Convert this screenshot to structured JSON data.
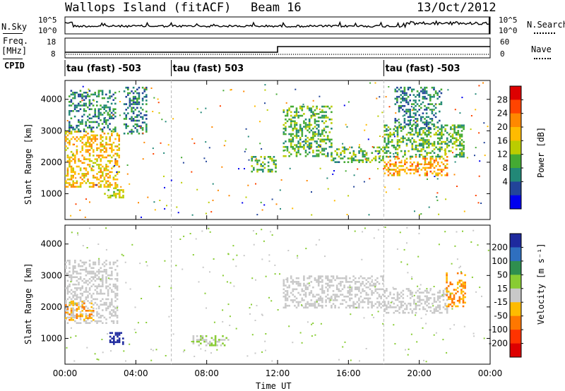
{
  "header": {
    "station": "Wallops Island (fitACF)",
    "beam": "Beam 16",
    "date": "13/Oct/2012"
  },
  "noise_panel": {
    "left_label": "N.Sky",
    "right_label": "N.Search",
    "left_ticks": [
      "10^5",
      "10^0"
    ],
    "right_ticks": [
      "10^5",
      "10^0"
    ]
  },
  "freq_panel": {
    "left_label_1": "Freq.",
    "left_label_2": "[MHz]",
    "left_ticks": [
      "18",
      "8"
    ],
    "right_label": "Nave",
    "right_ticks": [
      "60",
      "0"
    ]
  },
  "cpid": {
    "label": "CPID",
    "segments": [
      {
        "start_hour": 0,
        "text": "tau (fast) -503"
      },
      {
        "start_hour": 6,
        "text": "tau (fast) 503"
      },
      {
        "start_hour": 18,
        "text": "tau (fast) -503"
      }
    ]
  },
  "power_scale": {
    "label": "Power [dB]",
    "ticks": [
      "28",
      "24",
      "20",
      "16",
      "12",
      "8",
      "4"
    ],
    "colors": [
      "#dd0000",
      "#ff4400",
      "#ff8800",
      "#ffbb00",
      "#bbcc00",
      "#44aa33",
      "#228877",
      "#224499",
      "#0000ee"
    ]
  },
  "velocity_scale": {
    "label": "Velocity [m s⁻¹]",
    "ticks": [
      "200",
      "100",
      "50",
      "15",
      "-15",
      "-50",
      "-100",
      "-200"
    ],
    "colors": [
      "#1e2a9e",
      "#2f6fbf",
      "#2f8f4f",
      "#88cc33",
      "#c8c8c8",
      "#ffbb00",
      "#ff7700",
      "#ff3300",
      "#dd0000"
    ]
  },
  "chart_data": {
    "type": "heatmap",
    "xlabel": "Time UT",
    "x_ticks": [
      "00:00",
      "04:00",
      "08:00",
      "12:00",
      "16:00",
      "20:00",
      "00:00"
    ],
    "x_range_hours": [
      0,
      24
    ],
    "ylabel": "Slant Range [km]",
    "y_ticks": [
      1000,
      2000,
      3000,
      4000
    ],
    "y_range_km": [
      180,
      4600
    ],
    "freq_steps_mhz": [
      {
        "from_hour": 0,
        "to_hour": 12,
        "value": 10
      },
      {
        "from_hour": 12,
        "to_hour": 24,
        "value": 14
      }
    ],
    "power_regions": [
      {
        "t": [
          0.0,
          3.1
        ],
        "range_km": [
          1200,
          3000
        ],
        "level": 20
      },
      {
        "t": [
          0.2,
          2.8
        ],
        "range_km": [
          3000,
          4300
        ],
        "level": 8
      },
      {
        "t": [
          2.2,
          3.3
        ],
        "range_km": [
          900,
          1200
        ],
        "level": 16
      },
      {
        "t": [
          3.3,
          4.6
        ],
        "range_km": [
          2900,
          4400
        ],
        "level": 8
      },
      {
        "t": [
          10.5,
          11.9
        ],
        "range_km": [
          1700,
          2200
        ],
        "level": 12
      },
      {
        "t": [
          12.3,
          15.0
        ],
        "range_km": [
          2200,
          3800
        ],
        "level": 12
      },
      {
        "t": [
          15.0,
          18.0
        ],
        "range_km": [
          2000,
          2500
        ],
        "level": 12
      },
      {
        "t": [
          18.0,
          21.6
        ],
        "range_km": [
          1600,
          2200
        ],
        "level": 22
      },
      {
        "t": [
          18.0,
          22.5
        ],
        "range_km": [
          2200,
          3200
        ],
        "level": 12
      },
      {
        "t": [
          18.6,
          21.2
        ],
        "range_km": [
          3100,
          4400
        ],
        "level": 8
      }
    ],
    "velocity_regions": [
      {
        "t": [
          0.0,
          3.0
        ],
        "range_km": [
          1500,
          3500
        ],
        "level": 0
      },
      {
        "t": [
          0.0,
          1.6
        ],
        "range_km": [
          1600,
          2200
        ],
        "level": -50
      },
      {
        "t": [
          2.4,
          3.3
        ],
        "range_km": [
          800,
          1200
        ],
        "level": 200
      },
      {
        "t": [
          7.2,
          9.2
        ],
        "range_km": [
          800,
          1100
        ],
        "level": 15
      },
      {
        "t": [
          12.3,
          18.0
        ],
        "range_km": [
          2000,
          3000
        ],
        "level": 0
      },
      {
        "t": [
          18.0,
          21.6
        ],
        "range_km": [
          1800,
          2600
        ],
        "level": 0
      },
      {
        "t": [
          21.5,
          22.6
        ],
        "range_km": [
          2000,
          3100
        ],
        "level": -50
      }
    ]
  }
}
